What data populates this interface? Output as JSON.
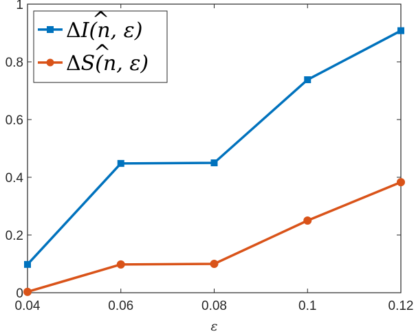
{
  "chart_data": {
    "type": "line",
    "title": "",
    "xlabel": "ε",
    "ylabel": "",
    "x": [
      0.04,
      0.06,
      0.08,
      0.1,
      0.12
    ],
    "xlim": [
      0.04,
      0.12
    ],
    "ylim": [
      0,
      1
    ],
    "xticks": [
      "0.04",
      "0.06",
      "0.08",
      "0.1",
      "0.12"
    ],
    "yticks": [
      "0",
      "0.2",
      "0.4",
      "0.6",
      "0.8",
      "1"
    ],
    "grid": false,
    "legend_position": "upper left",
    "series": [
      {
        "name": "ΔÎ(n,ε)",
        "color": "#0072BD",
        "marker": "square",
        "values": [
          0.098,
          0.448,
          0.45,
          0.738,
          0.908
        ]
      },
      {
        "name": "ΔŜ(n,ε)",
        "color": "#D95319",
        "marker": "circle",
        "values": [
          0.003,
          0.098,
          0.1,
          0.25,
          0.383
        ]
      }
    ]
  },
  "legend": {
    "items": [
      {
        "delta": "Δ",
        "symbol": "I",
        "hat": "^",
        "args": "(n, ε)"
      },
      {
        "delta": "Δ",
        "symbol": "S",
        "hat": "^",
        "args": "(n, ε)"
      }
    ]
  }
}
